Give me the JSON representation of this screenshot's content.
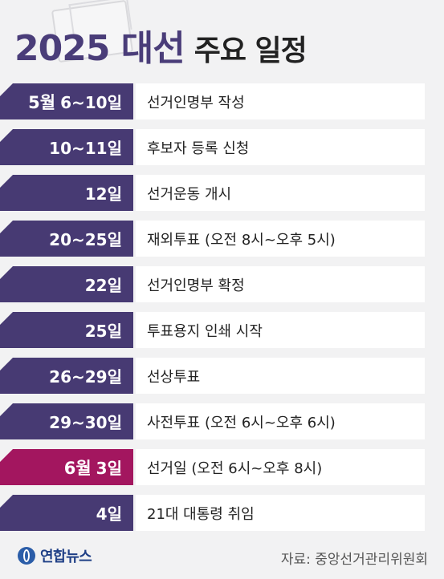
{
  "header": {
    "title_main": "2025 대선",
    "title_sub": "주요 일정"
  },
  "schedule": [
    {
      "month": "5월",
      "date": "6~10일",
      "event": "선거인명부 작성",
      "highlight": false
    },
    {
      "month": "",
      "date": "10~11일",
      "event": "후보자 등록 신청",
      "highlight": false
    },
    {
      "month": "",
      "date": "12일",
      "event": "선거운동 개시",
      "highlight": false
    },
    {
      "month": "",
      "date": "20~25일",
      "event": "재외투표 (오전 8시~오후 5시)",
      "highlight": false
    },
    {
      "month": "",
      "date": "22일",
      "event": "선거인명부 확정",
      "highlight": false
    },
    {
      "month": "",
      "date": "25일",
      "event": "투표용지 인쇄 시작",
      "highlight": false
    },
    {
      "month": "",
      "date": "26~29일",
      "event": "선상투표",
      "highlight": false
    },
    {
      "month": "",
      "date": "29~30일",
      "event": "사전투표 (오전 6시~오후 6시)",
      "highlight": false
    },
    {
      "month": "6월",
      "date": "3일",
      "event": "선거일 (오전 6시~오후 8시)",
      "highlight": true
    },
    {
      "month": "",
      "date": "4일",
      "event": "21대 대통령 취임",
      "highlight": false
    }
  ],
  "footer": {
    "logo": "연합뉴스",
    "source": "자료: 중앙선거관리위원회"
  },
  "colors": {
    "date_bg": "#473a73",
    "highlight_bg": "#a3165f",
    "title": "#4a3d79"
  }
}
